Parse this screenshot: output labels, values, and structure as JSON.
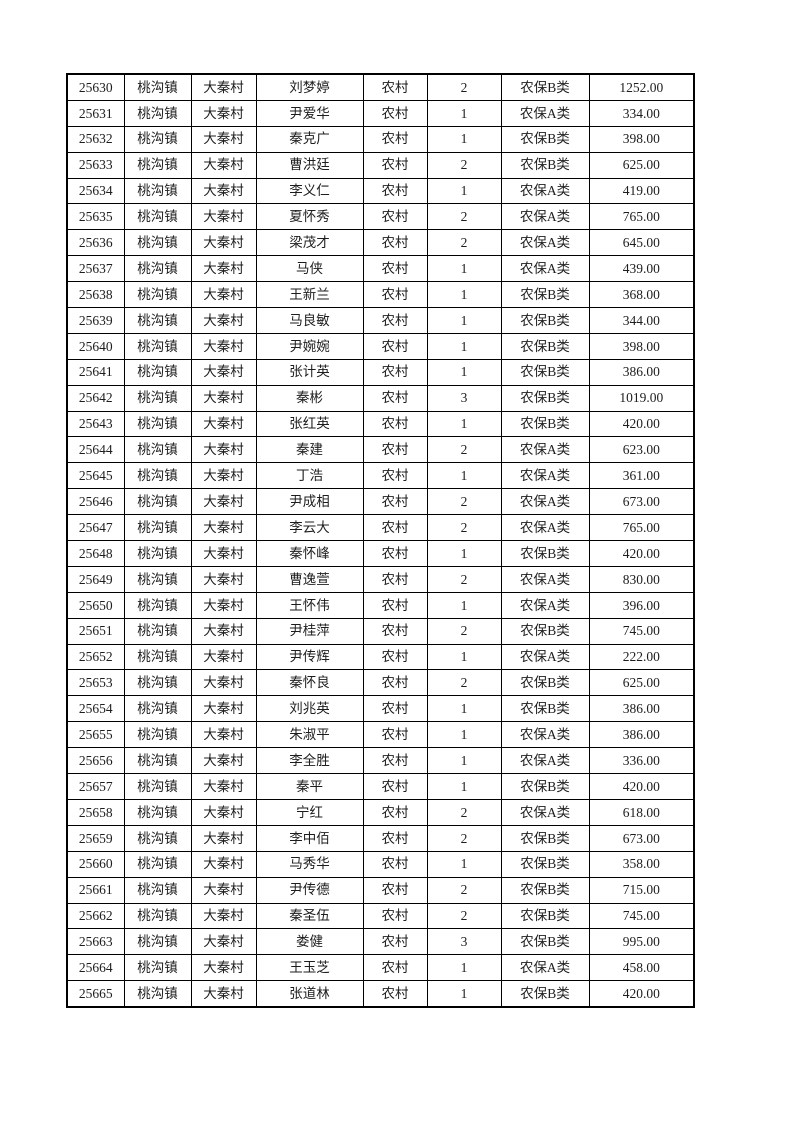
{
  "table": {
    "column_keys": [
      "serial-number",
      "town",
      "village",
      "name",
      "household-type",
      "person-count",
      "insurance-class",
      "amount"
    ],
    "rows": [
      [
        "25630",
        "桃沟镇",
        "大秦村",
        "刘梦婷",
        "农村",
        "2",
        "农保B类",
        "1252.00"
      ],
      [
        "25631",
        "桃沟镇",
        "大秦村",
        "尹爱华",
        "农村",
        "1",
        "农保A类",
        "334.00"
      ],
      [
        "25632",
        "桃沟镇",
        "大秦村",
        "秦克广",
        "农村",
        "1",
        "农保B类",
        "398.00"
      ],
      [
        "25633",
        "桃沟镇",
        "大秦村",
        "曹洪廷",
        "农村",
        "2",
        "农保B类",
        "625.00"
      ],
      [
        "25634",
        "桃沟镇",
        "大秦村",
        "李义仁",
        "农村",
        "1",
        "农保A类",
        "419.00"
      ],
      [
        "25635",
        "桃沟镇",
        "大秦村",
        "夏怀秀",
        "农村",
        "2",
        "农保A类",
        "765.00"
      ],
      [
        "25636",
        "桃沟镇",
        "大秦村",
        "梁茂才",
        "农村",
        "2",
        "农保A类",
        "645.00"
      ],
      [
        "25637",
        "桃沟镇",
        "大秦村",
        "马侠",
        "农村",
        "1",
        "农保A类",
        "439.00"
      ],
      [
        "25638",
        "桃沟镇",
        "大秦村",
        "王新兰",
        "农村",
        "1",
        "农保B类",
        "368.00"
      ],
      [
        "25639",
        "桃沟镇",
        "大秦村",
        "马良敏",
        "农村",
        "1",
        "农保B类",
        "344.00"
      ],
      [
        "25640",
        "桃沟镇",
        "大秦村",
        "尹婉婉",
        "农村",
        "1",
        "农保B类",
        "398.00"
      ],
      [
        "25641",
        "桃沟镇",
        "大秦村",
        "张计英",
        "农村",
        "1",
        "农保B类",
        "386.00"
      ],
      [
        "25642",
        "桃沟镇",
        "大秦村",
        "秦彬",
        "农村",
        "3",
        "农保B类",
        "1019.00"
      ],
      [
        "25643",
        "桃沟镇",
        "大秦村",
        "张红英",
        "农村",
        "1",
        "农保B类",
        "420.00"
      ],
      [
        "25644",
        "桃沟镇",
        "大秦村",
        "秦建",
        "农村",
        "2",
        "农保A类",
        "623.00"
      ],
      [
        "25645",
        "桃沟镇",
        "大秦村",
        "丁浩",
        "农村",
        "1",
        "农保A类",
        "361.00"
      ],
      [
        "25646",
        "桃沟镇",
        "大秦村",
        "尹成相",
        "农村",
        "2",
        "农保A类",
        "673.00"
      ],
      [
        "25647",
        "桃沟镇",
        "大秦村",
        "李云大",
        "农村",
        "2",
        "农保A类",
        "765.00"
      ],
      [
        "25648",
        "桃沟镇",
        "大秦村",
        "秦怀峰",
        "农村",
        "1",
        "农保B类",
        "420.00"
      ],
      [
        "25649",
        "桃沟镇",
        "大秦村",
        "曹逸萱",
        "农村",
        "2",
        "农保A类",
        "830.00"
      ],
      [
        "25650",
        "桃沟镇",
        "大秦村",
        "王怀伟",
        "农村",
        "1",
        "农保A类",
        "396.00"
      ],
      [
        "25651",
        "桃沟镇",
        "大秦村",
        "尹桂萍",
        "农村",
        "2",
        "农保B类",
        "745.00"
      ],
      [
        "25652",
        "桃沟镇",
        "大秦村",
        "尹传辉",
        "农村",
        "1",
        "农保A类",
        "222.00"
      ],
      [
        "25653",
        "桃沟镇",
        "大秦村",
        "秦怀良",
        "农村",
        "2",
        "农保B类",
        "625.00"
      ],
      [
        "25654",
        "桃沟镇",
        "大秦村",
        "刘兆英",
        "农村",
        "1",
        "农保B类",
        "386.00"
      ],
      [
        "25655",
        "桃沟镇",
        "大秦村",
        "朱淑平",
        "农村",
        "1",
        "农保A类",
        "386.00"
      ],
      [
        "25656",
        "桃沟镇",
        "大秦村",
        "李全胜",
        "农村",
        "1",
        "农保A类",
        "336.00"
      ],
      [
        "25657",
        "桃沟镇",
        "大秦村",
        "秦平",
        "农村",
        "1",
        "农保B类",
        "420.00"
      ],
      [
        "25658",
        "桃沟镇",
        "大秦村",
        "宁红",
        "农村",
        "2",
        "农保A类",
        "618.00"
      ],
      [
        "25659",
        "桃沟镇",
        "大秦村",
        "李中佰",
        "农村",
        "2",
        "农保B类",
        "673.00"
      ],
      [
        "25660",
        "桃沟镇",
        "大秦村",
        "马秀华",
        "农村",
        "1",
        "农保B类",
        "358.00"
      ],
      [
        "25661",
        "桃沟镇",
        "大秦村",
        "尹传德",
        "农村",
        "2",
        "农保B类",
        "715.00"
      ],
      [
        "25662",
        "桃沟镇",
        "大秦村",
        "秦圣伍",
        "农村",
        "2",
        "农保B类",
        "745.00"
      ],
      [
        "25663",
        "桃沟镇",
        "大秦村",
        "娄健",
        "农村",
        "3",
        "农保B类",
        "995.00"
      ],
      [
        "25664",
        "桃沟镇",
        "大秦村",
        "王玉芝",
        "农村",
        "1",
        "农保A类",
        "458.00"
      ],
      [
        "25665",
        "桃沟镇",
        "大秦村",
        "张道林",
        "农村",
        "1",
        "农保B类",
        "420.00"
      ]
    ]
  },
  "colors": {
    "page_background": "#ffffff",
    "border": "#000000",
    "text": "#1d1d1d"
  }
}
